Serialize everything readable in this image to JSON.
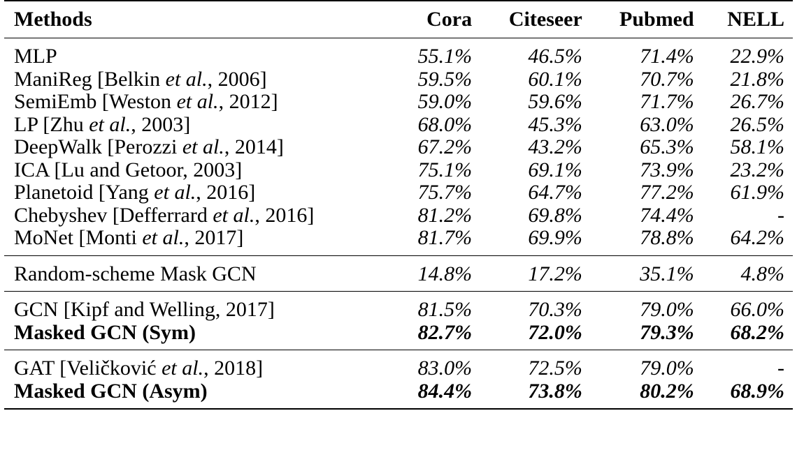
{
  "table": {
    "headers": [
      "Methods",
      "Cora",
      "Citeseer",
      "Pubmed",
      "NELL"
    ],
    "sections": [
      {
        "rows": [
          {
            "name": "MLP",
            "author": "",
            "etal": false,
            "year": "",
            "values": [
              "55.1%",
              "46.5%",
              "71.4%",
              "22.9%"
            ],
            "bold": false
          },
          {
            "name": "ManiReg [Belkin ",
            "author": "Belkin",
            "etal": true,
            "year": ", 2006]",
            "values": [
              "59.5%",
              "60.1%",
              "70.7%",
              "21.8%"
            ],
            "bold": false
          },
          {
            "name": "SemiEmb [Weston ",
            "author": "Weston",
            "etal": true,
            "year": ", 2012]",
            "values": [
              "59.0%",
              "59.6%",
              "71.7%",
              "26.7%"
            ],
            "bold": false
          },
          {
            "name": "LP [Zhu ",
            "author": "Zhu",
            "etal": true,
            "year": ", 2003]",
            "values": [
              "68.0%",
              "45.3%",
              "63.0%",
              "26.5%"
            ],
            "bold": false
          },
          {
            "name": "DeepWalk [Perozzi ",
            "author": "Perozzi",
            "etal": true,
            "year": ", 2014]",
            "values": [
              "67.2%",
              "43.2%",
              "65.3%",
              "58.1%"
            ],
            "bold": false
          },
          {
            "name": "ICA [Lu and Getoor, 2003]",
            "author": "",
            "etal": false,
            "year": "",
            "values": [
              "75.1%",
              "69.1%",
              "73.9%",
              "23.2%"
            ],
            "bold": false
          },
          {
            "name": "Planetoid [Yang ",
            "author": "Yang",
            "etal": true,
            "year": ", 2016]",
            "values": [
              "75.7%",
              "64.7%",
              "77.2%",
              "61.9%"
            ],
            "bold": false
          },
          {
            "name": "Chebyshev [Defferrard ",
            "author": "Defferrard",
            "etal": true,
            "year": ", 2016]",
            "values": [
              "81.2%",
              "69.8%",
              "74.4%",
              "-"
            ],
            "bold": false
          },
          {
            "name": "MoNet [Monti ",
            "author": "Monti",
            "etal": true,
            "year": ", 2017]",
            "values": [
              "81.7%",
              "69.9%",
              "78.8%",
              "64.2%"
            ],
            "bold": false
          }
        ]
      },
      {
        "rows": [
          {
            "name": "Random-scheme Mask GCN",
            "author": "",
            "etal": false,
            "year": "",
            "values": [
              "14.8%",
              "17.2%",
              "35.1%",
              "4.8%"
            ],
            "bold": false
          }
        ]
      },
      {
        "rows": [
          {
            "name": "GCN [Kipf and Welling, 2017]",
            "author": "",
            "etal": false,
            "year": "",
            "values": [
              "81.5%",
              "70.3%",
              "79.0%",
              "66.0%"
            ],
            "bold": false
          },
          {
            "name": "Masked GCN (Sym)",
            "author": "",
            "etal": false,
            "year": "",
            "values": [
              "82.7%",
              "72.0%",
              "79.3%",
              "68.2%"
            ],
            "bold": true
          }
        ]
      },
      {
        "rows": [
          {
            "name": "GAT [Veličković ",
            "author": "Veličković",
            "etal": true,
            "year": ", 2018]",
            "values": [
              "83.0%",
              "72.5%",
              "79.0%",
              "-"
            ],
            "bold": false
          },
          {
            "name": "Masked GCN (Asym)",
            "author": "",
            "etal": false,
            "year": "",
            "values": [
              "84.4%",
              "73.8%",
              "80.2%",
              "68.9%"
            ],
            "bold": true
          }
        ]
      }
    ],
    "etal_text": "et al."
  }
}
